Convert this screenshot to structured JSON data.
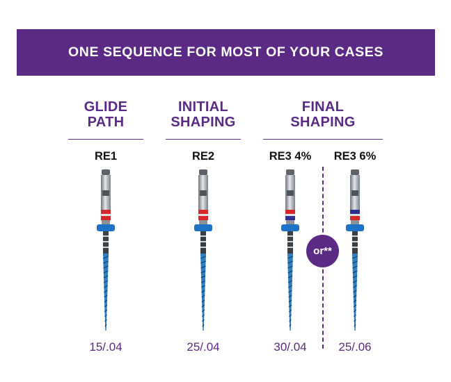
{
  "banner": {
    "title": "ONE SEQUENCE FOR MOST OF YOUR CASES"
  },
  "stages": [
    {
      "line1": "GLIDE",
      "line2": "PATH"
    },
    {
      "line1": "INITIAL",
      "line2": "SHAPING"
    },
    {
      "line1": "FINAL",
      "line2": "SHAPING"
    }
  ],
  "files": [
    {
      "name": "RE1",
      "size": "15/.04",
      "rings": [
        "#d6282b",
        "#d6282b"
      ]
    },
    {
      "name": "RE2",
      "size": "25/.04",
      "rings": [
        "#d6282b",
        "#d6282b"
      ]
    },
    {
      "name": "RE3 4%",
      "size": "30/.04",
      "rings": [
        "#d6282b",
        "#2b2f8f"
      ]
    },
    {
      "name": "RE3 6%",
      "size": "25/.06",
      "rings": [
        "#2b2f8f",
        "#d6282b"
      ]
    }
  ],
  "or_badge": "or**",
  "colors": {
    "brand": "#5a2a84",
    "file_blue": "#2f7fc1",
    "stopper": "#1e73c8",
    "shank": "#9aa0a6"
  }
}
